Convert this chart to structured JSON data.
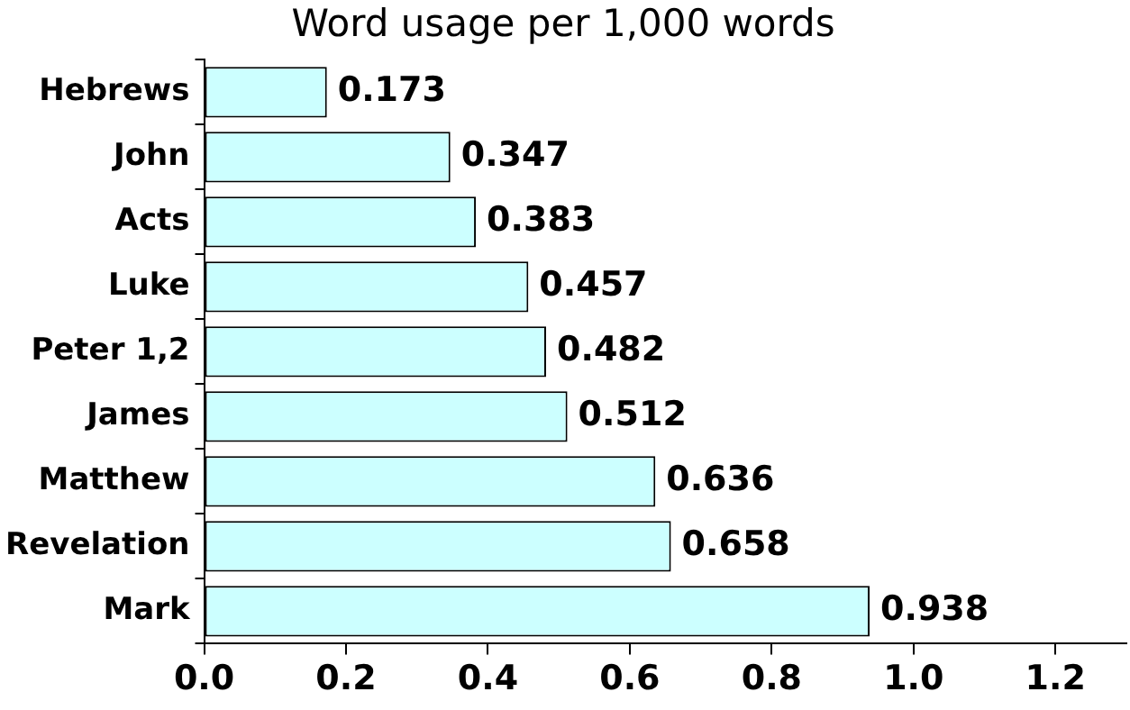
{
  "chart_data": {
    "type": "bar",
    "orientation": "horizontal",
    "title": "Word usage per 1,000 words",
    "categories": [
      "Hebrews",
      "John",
      "Acts",
      "Luke",
      "Peter 1,2",
      "James",
      "Matthew",
      "Revelation",
      "Mark"
    ],
    "values": [
      0.173,
      0.347,
      0.383,
      0.457,
      0.482,
      0.512,
      0.636,
      0.658,
      0.938
    ],
    "color": "#ccffff",
    "xlim": [
      0,
      1.3
    ],
    "xticks": [
      {
        "value": 0,
        "label": "0.0"
      },
      0.2,
      0.4,
      0.6,
      0.8,
      {
        "value": 1,
        "label": "1.0"
      },
      1.2
    ],
    "grid": false,
    "legend": false,
    "data_labels": true
  }
}
